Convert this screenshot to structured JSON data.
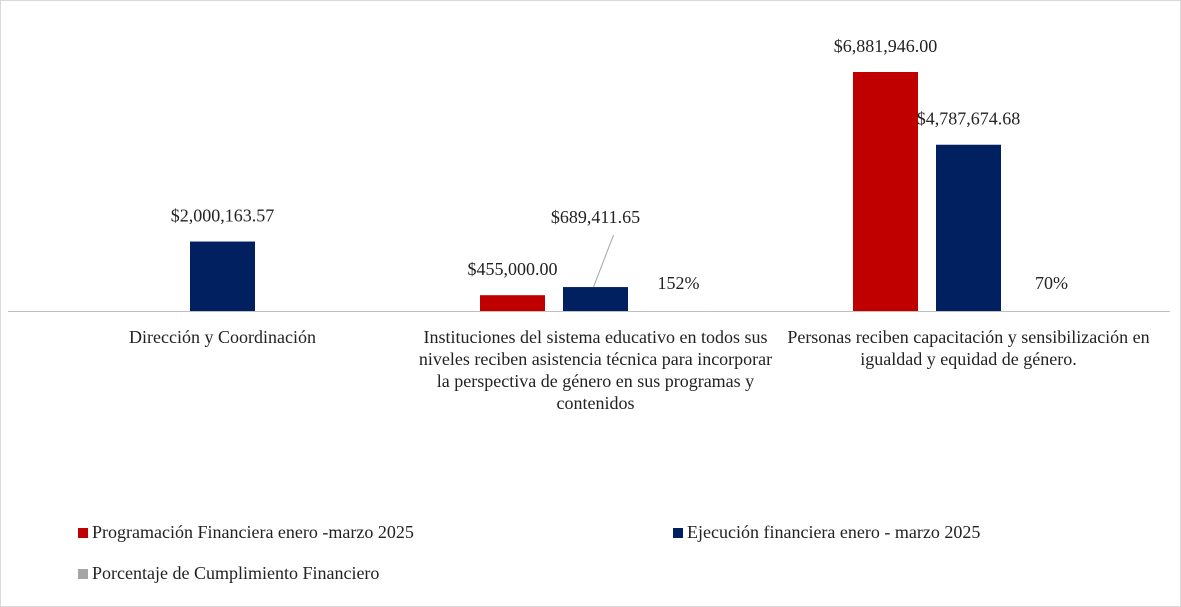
{
  "chart_data": {
    "type": "bar",
    "categories": [
      "Dirección y Coordinación",
      "Instituciones del sistema educativo en todos sus niveles reciben asistencia técnica para incorporar la perspectiva de género en sus programas y contenidos",
      "Personas reciben capacitación y sensibilización en igualdad y equidad de género."
    ],
    "series": [
      {
        "name": "Programación Financiera enero -marzo 2025",
        "color": "#c00000",
        "values": [
          null,
          455000,
          6881946
        ],
        "value_labels": [
          null,
          "$455,000.00",
          "$6,881,946.00"
        ]
      },
      {
        "name": "Ejecución financiera enero - marzo 2025",
        "color": "#002060",
        "values": [
          2000163.57,
          689411.65,
          4787674.68
        ],
        "value_labels": [
          "$2,000,163.57",
          "$689,411.65",
          "$4,787,674.68"
        ]
      },
      {
        "name": "Porcentaje de Cumplimiento Financiero",
        "color": "#a5a5a5",
        "values": [
          null,
          152,
          70
        ],
        "value_labels": [
          null,
          "152%",
          "70%"
        ]
      }
    ],
    "legend": "bottom"
  }
}
